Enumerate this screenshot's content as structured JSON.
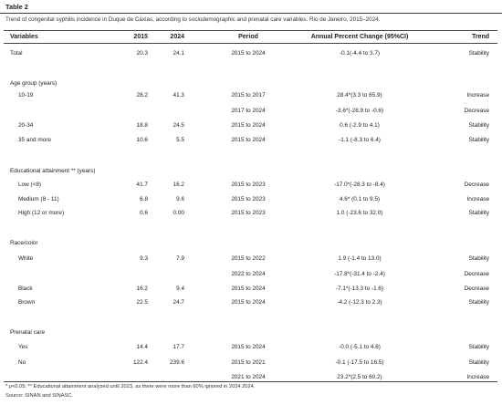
{
  "table": {
    "label": "Table 2",
    "caption": "Trend of congenital syphilis incidence in Duque de Caxias, according to sociodemographic and prenatal care variables. Rio de Janeiro, 2015–2024.",
    "headers": {
      "variables": "Variables",
      "y2015": "2015",
      "y2024": "2024",
      "period": "Period",
      "apc": "Annual Percent Change (95%CI)",
      "trend": "Trend"
    },
    "rows": [
      {
        "label": "Total",
        "v2015": "20.3",
        "v2024": "24.1",
        "period": "2015 to 2024",
        "apc": "-0.1(-4.4 to 3.7)",
        "trend": "Stability"
      },
      {
        "label": "Age group (years)"
      },
      {
        "label": "10-19",
        "v2015": "28.2",
        "v2024": "41.3",
        "period": "2015 to 2017",
        "apc": "28.4*(3.3 to 65.9)",
        "trend": "Increase"
      },
      {
        "period": "2017 to 2024",
        "apc": "-3.6*(-28.9 to -0.6)",
        "trend": "Decrease"
      },
      {
        "label": "20-34",
        "v2015": "18.8",
        "v2024": "24.5",
        "period": "2015 to 2024",
        "apc": "0.6  (-2.9 to 4.1)",
        "trend": "Stability"
      },
      {
        "label": "35 and more",
        "v2015": "10.6",
        "v2024": "5.5",
        "period": "2015 to 2024",
        "apc": "-1.1 (-8.3 to 6.4)",
        "trend": "Stability"
      },
      {
        "label": "Educational attainment ** (years)"
      },
      {
        "label": "Low (<8)",
        "v2015": "41.7",
        "v2024": "16.2",
        "period": "2015 to 2023",
        "apc": "-17.0*(-28.3 to -8.4)",
        "trend": "Decrease"
      },
      {
        "label": "Medium (8 - 11)",
        "v2015": "6.8",
        "v2024": "9.6",
        "period": "2015 to 2023",
        "apc": "4.6* (0.1 to 9.5)",
        "trend": "Increase"
      },
      {
        "label": "High (12 or more)",
        "v2015": "0.6",
        "v2024": "0.00",
        "period": "2015 to 2023",
        "apc": "1.0 (-23.6 to 32.0)",
        "trend": "Stability"
      },
      {
        "label": "Race/color"
      },
      {
        "label": "White",
        "v2015": "9.3",
        "v2024": "7.9",
        "period": "2015 to 2022",
        "apc": "1.9 (-1.4 to 13.0)",
        "trend": "Stability"
      },
      {
        "period": "2022 to 2024",
        "apc": "-17.8*(-31.4 to -2.4)",
        "trend": "Decrease"
      },
      {
        "label": "Black",
        "v2015": "16.2",
        "v2024": "9.4",
        "period": "2015 to 2024",
        "apc": "-7.1*(-13.3 to -1.6)",
        "trend": "Decrease"
      },
      {
        "label": "Brown",
        "v2015": "22.5",
        "v2024": "24.7",
        "period": "2015 to 2024",
        "apc": "-4.2 (-12.3 to 2.3)",
        "trend": "Stability"
      },
      {
        "label": "Prenatal care"
      },
      {
        "label": "Yes",
        "v2015": "14.4",
        "v2024": "17.7",
        "period": "2015 to 2024",
        "apc": "-0.0 (-5.1 to 4.6)",
        "trend": "Stability"
      },
      {
        "label": "No",
        "v2015": "122.4",
        "v2024": "239.6",
        "period": "2015 to 2021",
        "apc": "-0.1 (-17.5 to 16.5)",
        "trend": "Stability"
      },
      {
        "period": "2021 to 2024",
        "apc": "23.2*(2.5 to 60.2)",
        "trend": "Increase"
      }
    ],
    "footnote_marker": "*",
    "footnote_p": "p",
    "footnote_rest": "<0.05; ** Educational attainment analyzed until 2023, as there were more than 60% ignored in 2024 2024.",
    "source": "Source: SINAN and SINASC."
  }
}
